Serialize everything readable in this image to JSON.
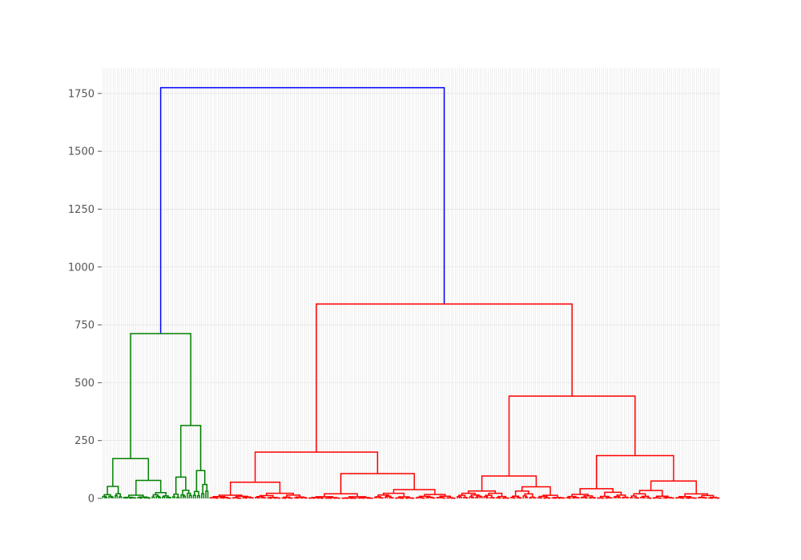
{
  "chart_data": {
    "type": "dendrogram",
    "title": "",
    "xlabel": "",
    "ylabel": "",
    "ylim": [
      0,
      1860
    ],
    "yticks": [
      0,
      250,
      500,
      750,
      1000,
      1250,
      1500,
      1750
    ],
    "grid": true,
    "background": "#ffffff",
    "grid_color": "#dddddd",
    "colors": {
      "root": "#0000ff",
      "cluster_1": "#008000",
      "cluster_2": "#ff0000"
    },
    "leaf_count": 300,
    "root_height": 1775,
    "merges": [
      {
        "name": "root",
        "height": 1775,
        "children": [
          "cluster-1",
          "cluster-2"
        ],
        "color": "#0000ff"
      },
      {
        "name": "cluster-1",
        "height": 712,
        "color": "#008000"
      },
      {
        "name": "cluster-1a",
        "height": 172,
        "color": "#008000"
      },
      {
        "name": "cluster-1b",
        "height": 315,
        "color": "#008000"
      },
      {
        "name": "cluster-2",
        "height": 840,
        "color": "#ff0000"
      },
      {
        "name": "cluster-2a",
        "height": 200,
        "color": "#ff0000"
      },
      {
        "name": "cluster-2b",
        "height": 442,
        "color": "#ff0000"
      },
      {
        "name": "cluster-2a-1",
        "height": 70,
        "color": "#ff0000"
      },
      {
        "name": "cluster-2a-2",
        "height": 107,
        "color": "#ff0000"
      },
      {
        "name": "cluster-2b-1",
        "height": 97,
        "color": "#ff0000"
      },
      {
        "name": "cluster-2b-2",
        "height": 185,
        "color": "#ff0000"
      }
    ]
  }
}
